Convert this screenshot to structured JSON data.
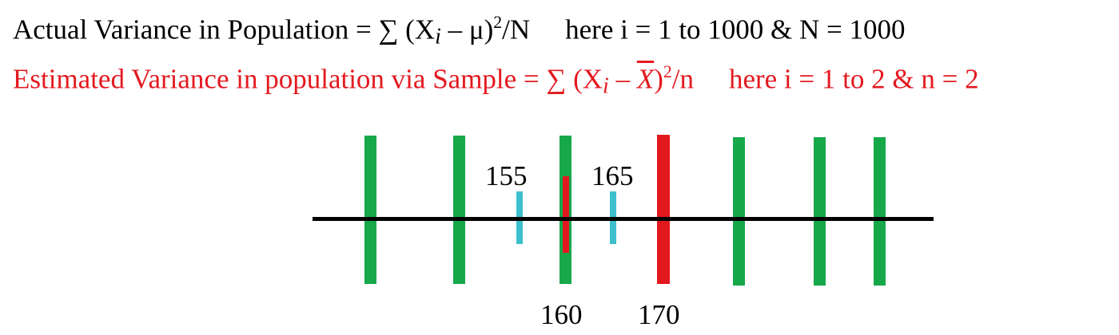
{
  "formulas": {
    "actual": {
      "lead": "Actual Variance in Population = ∑ (X",
      "sub": "i",
      "mid": " – μ)",
      "sup": "2",
      "tail": "/N",
      "range": "here i = 1 to 1000 & N = 1000"
    },
    "estimated": {
      "lead": "Estimated Variance in population via Sample = ∑ (X",
      "sub": "i",
      "mid": " – ",
      "xbar": "X",
      "close": ")",
      "sup": "2",
      "tail": "/n",
      "range": "here i = 1 to 2 & n = 2"
    }
  },
  "number_line": {
    "labels": {
      "cyan_left": "155",
      "cyan_right": "165",
      "red_short": "160",
      "red_tall": "170"
    }
  },
  "colors": {
    "estimated_text": "#e3191f",
    "population_mark": "#17a84a",
    "sample_mark": "#e3191f",
    "deviation_mark": "#3dbfcc",
    "axis": "#000000"
  }
}
